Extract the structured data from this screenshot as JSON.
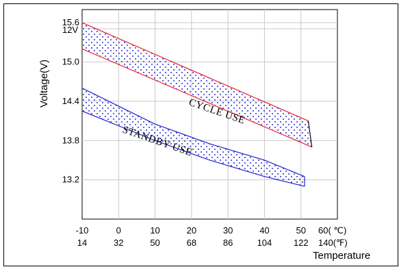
{
  "chart_data": {
    "type": "area",
    "xlabel": "Temperature",
    "ylabel": "Voltage(V)",
    "y_unit_label": "12V",
    "x_unit_c": "60( ℃)",
    "x_unit_f": "140(℉)",
    "xlim": [
      -10,
      60
    ],
    "ylim": [
      12.6,
      15.8
    ],
    "grid": true,
    "x_ticks_c": [
      "-10",
      "0",
      "10",
      "20",
      "30",
      "40",
      "50"
    ],
    "x_ticks_f": [
      "14",
      "32",
      "50",
      "68",
      "86",
      "104",
      "122"
    ],
    "y_ticks": [
      "13.2",
      "13.8",
      "14.4",
      "15.0",
      "15.6"
    ],
    "series": [
      {
        "name": "CYCLE USE",
        "color": "#e8202a",
        "upper": {
          "x": [
            -10,
            52
          ],
          "y": [
            15.6,
            14.1
          ]
        },
        "lower": {
          "x": [
            -10,
            53
          ],
          "y": [
            15.2,
            13.7
          ]
        }
      },
      {
        "name": "STANDBY USE",
        "color": "#2020d0",
        "upper": {
          "x": [
            -10,
            10,
            25,
            40,
            51
          ],
          "y": [
            14.6,
            14.05,
            13.75,
            13.5,
            13.25
          ]
        },
        "lower": {
          "x": [
            -10,
            10,
            25,
            40,
            51
          ],
          "y": [
            14.25,
            13.8,
            13.5,
            13.25,
            13.1
          ]
        }
      }
    ]
  }
}
